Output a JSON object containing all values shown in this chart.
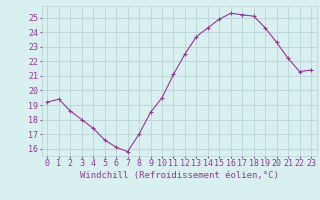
{
  "x": [
    0,
    1,
    2,
    3,
    4,
    5,
    6,
    7,
    8,
    9,
    10,
    11,
    12,
    13,
    14,
    15,
    16,
    17,
    18,
    19,
    20,
    21,
    22,
    23
  ],
  "y": [
    19.2,
    19.4,
    18.6,
    18.0,
    17.4,
    16.6,
    16.1,
    15.8,
    17.0,
    18.5,
    19.5,
    21.1,
    22.5,
    23.7,
    24.3,
    24.9,
    25.3,
    25.2,
    25.1,
    24.3,
    23.3,
    22.2,
    21.3,
    21.4
  ],
  "line_color": "#993399",
  "marker": "+",
  "bg_color": "#d9f0f0",
  "grid_color": "#b8d4d4",
  "xlabel": "Windchill (Refroidissement éolien,°C)",
  "ylabel_ticks": [
    16,
    17,
    18,
    19,
    20,
    21,
    22,
    23,
    24,
    25
  ],
  "tick_fontsize": 6,
  "xlabel_fontsize": 6.5,
  "xlim": [
    -0.5,
    23.5
  ],
  "ylim": [
    15.5,
    25.8
  ]
}
